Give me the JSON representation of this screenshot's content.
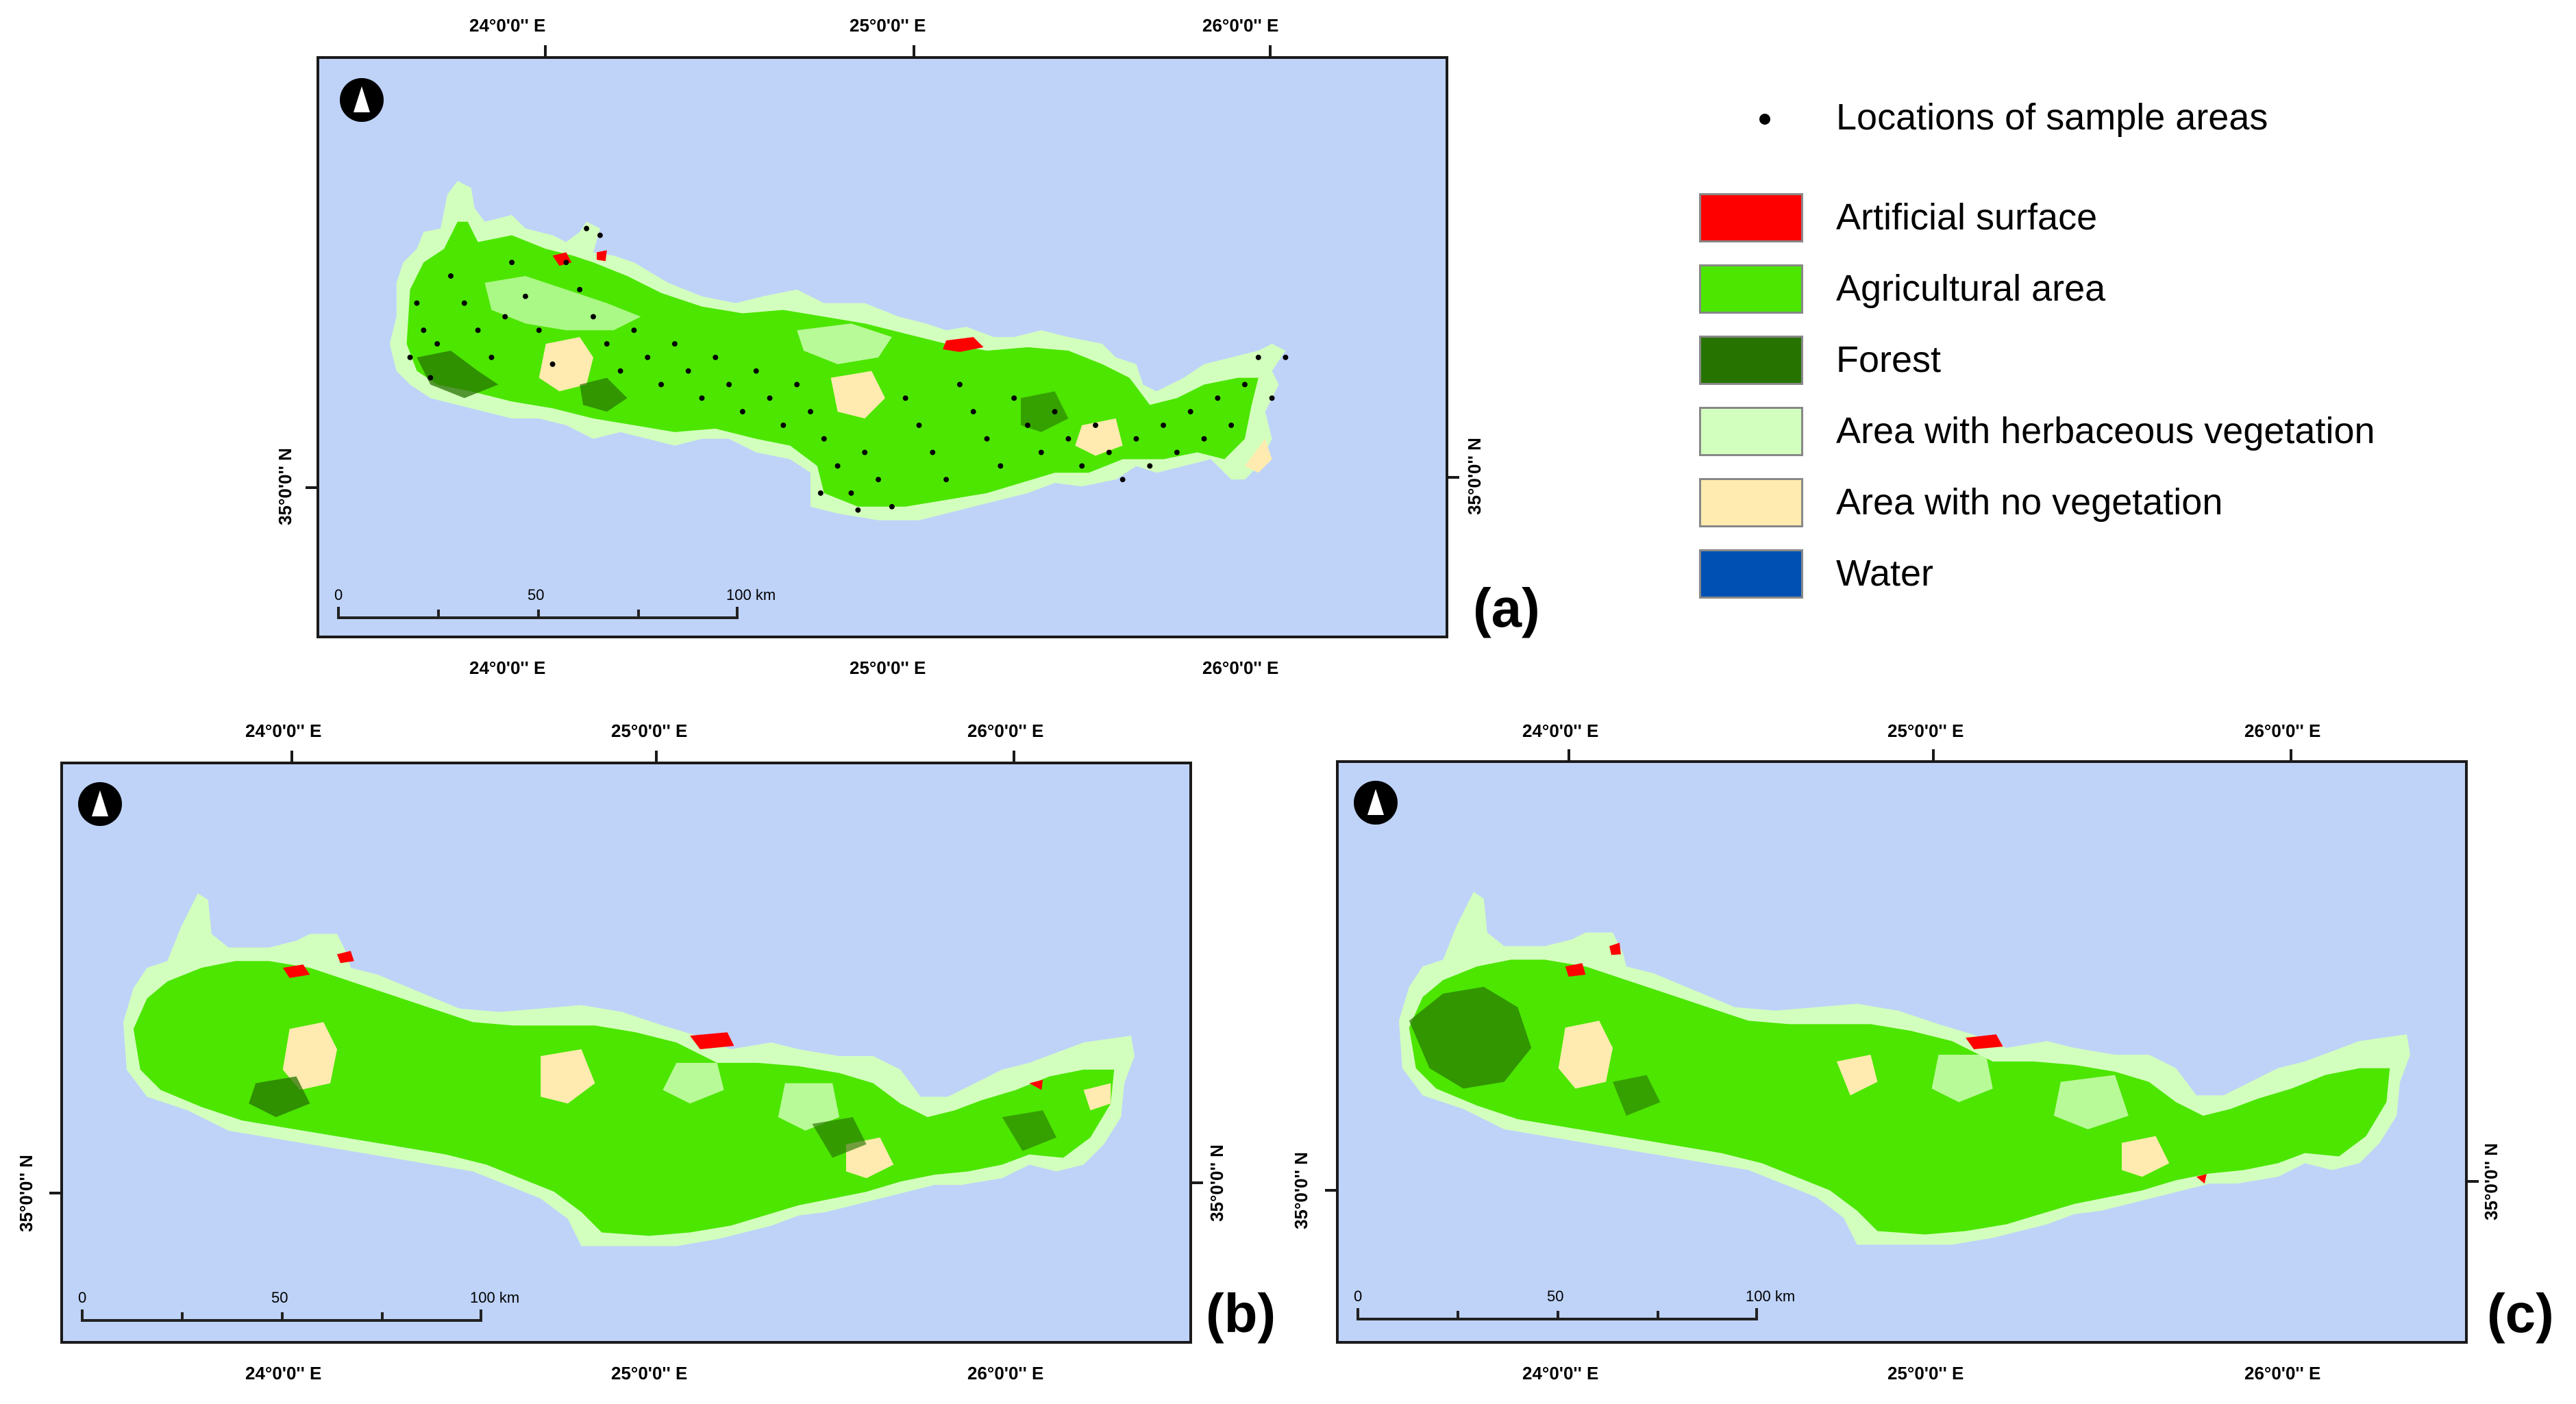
{
  "legend": {
    "points_label": "Locations of sample areas",
    "classes": [
      {
        "label": "Artificial surface",
        "color": "#ff0000"
      },
      {
        "label": "Agricultural area",
        "color": "#4ce600"
      },
      {
        "label": "Forest",
        "color": "#267300"
      },
      {
        "label": "Area with herbaceous vegetation",
        "color": "#d3ffbe"
      },
      {
        "label": "Area with no vegetation",
        "color": "#ffebaf"
      },
      {
        "label": "Water",
        "color": "#0050b4"
      }
    ]
  },
  "colors": {
    "sea": "#bfd3f8"
  },
  "axes": {
    "lon_labels": [
      "24°0'0'' E",
      "25°0'0'' E",
      "26°0'0'' E"
    ],
    "lat_label": "35°0'0'' N"
  },
  "scale_bar": {
    "labels": [
      "0",
      "50",
      "100 km"
    ]
  },
  "panels": {
    "a": {
      "label": "(a)"
    },
    "b": {
      "label": "(b)"
    },
    "c": {
      "label": "(c)"
    }
  }
}
